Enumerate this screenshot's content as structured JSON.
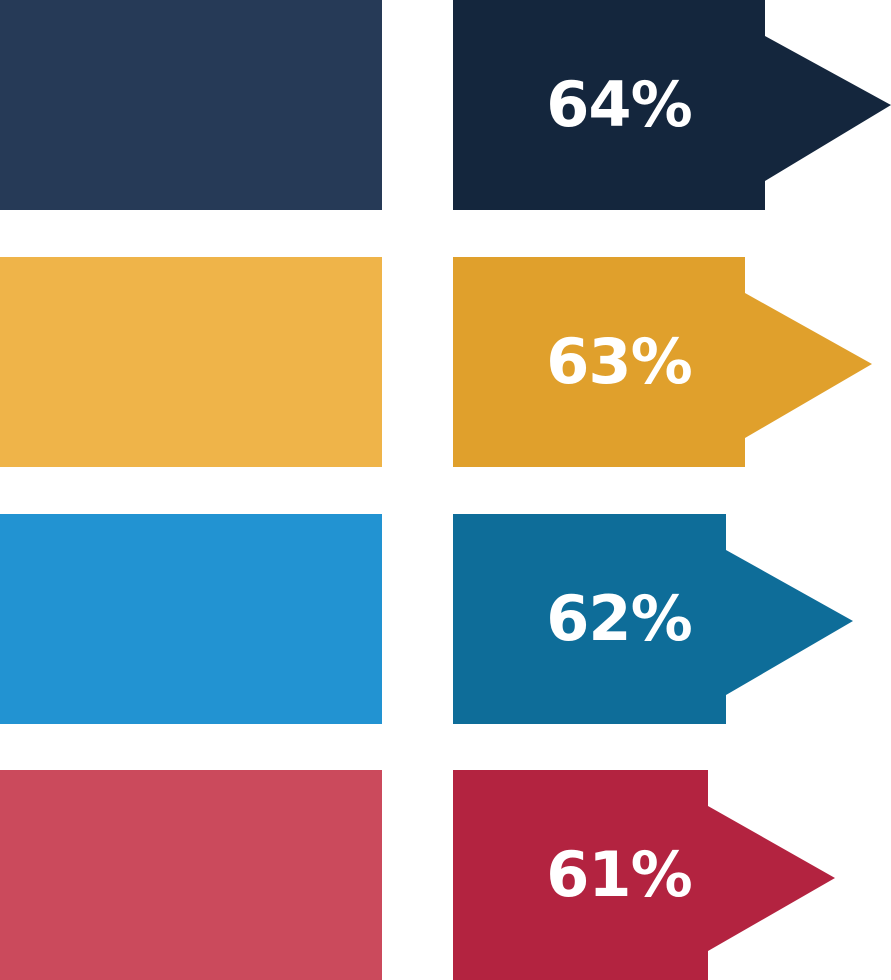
{
  "items": [
    {
      "label": "64%",
      "value": 64,
      "block_color": "#263a57",
      "tag_color": "#14263d"
    },
    {
      "label": "63%",
      "value": 63,
      "block_color": "#efb449",
      "tag_color": "#e0a02c"
    },
    {
      "label": "62%",
      "value": 62,
      "block_color": "#2293d2",
      "tag_color": "#0e6d99"
    },
    {
      "label": "61%",
      "value": 61,
      "block_color": "#cb4a5c",
      "tag_color": "#b32340"
    }
  ]
}
